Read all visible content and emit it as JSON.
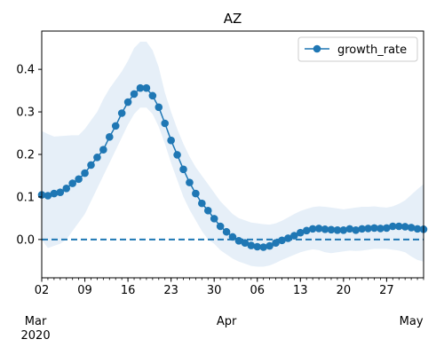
{
  "chart_data": {
    "type": "line",
    "title": "AZ",
    "xlabel": "",
    "ylabel": "",
    "x_start": "2020-03-02",
    "ylim": [
      -0.09,
      0.49
    ],
    "yticks": [
      0.0,
      0.1,
      0.2,
      0.3,
      0.4
    ],
    "ytick_labels": [
      "0.0",
      "0.1",
      "0.2",
      "0.3",
      "0.4"
    ],
    "xticks_minor": [
      {
        "date": "2020-03-02",
        "label": "02"
      },
      {
        "date": "2020-03-09",
        "label": "09"
      },
      {
        "date": "2020-03-16",
        "label": "16"
      },
      {
        "date": "2020-03-23",
        "label": "23"
      },
      {
        "date": "2020-03-30",
        "label": "30"
      },
      {
        "date": "2020-04-06",
        "label": "06"
      },
      {
        "date": "2020-04-13",
        "label": "13"
      },
      {
        "date": "2020-04-20",
        "label": "20"
      },
      {
        "date": "2020-04-27",
        "label": "27"
      }
    ],
    "xticks_major": [
      {
        "date": "2020-03-01",
        "label": "Mar",
        "sublabel": "2020"
      },
      {
        "date": "2020-04-01",
        "label": "Apr",
        "sublabel": ""
      },
      {
        "date": "2020-05-01",
        "label": "May",
        "sublabel": ""
      }
    ],
    "xlim": [
      "2020-03-02",
      "2020-05-03"
    ],
    "reference_line": {
      "y": 0.0,
      "style": "dashed",
      "color": "#1f77b4"
    },
    "legend": {
      "position": "top-right",
      "entries": [
        "growth_rate"
      ]
    },
    "colors": {
      "series": "#1f77b4",
      "band": "#dce8f5"
    },
    "series": [
      {
        "name": "growth_rate",
        "dates": [
          "2020-03-02",
          "2020-03-03",
          "2020-03-04",
          "2020-03-05",
          "2020-03-06",
          "2020-03-07",
          "2020-03-08",
          "2020-03-09",
          "2020-03-10",
          "2020-03-11",
          "2020-03-12",
          "2020-03-13",
          "2020-03-14",
          "2020-03-15",
          "2020-03-16",
          "2020-03-17",
          "2020-03-18",
          "2020-03-19",
          "2020-03-20",
          "2020-03-21",
          "2020-03-22",
          "2020-03-23",
          "2020-03-24",
          "2020-03-25",
          "2020-03-26",
          "2020-03-27",
          "2020-03-28",
          "2020-03-29",
          "2020-03-30",
          "2020-03-31",
          "2020-04-01",
          "2020-04-02",
          "2020-04-03",
          "2020-04-04",
          "2020-04-05",
          "2020-04-06",
          "2020-04-07",
          "2020-04-08",
          "2020-04-09",
          "2020-04-10",
          "2020-04-11",
          "2020-04-12",
          "2020-04-13",
          "2020-04-14",
          "2020-04-15",
          "2020-04-16",
          "2020-04-17",
          "2020-04-18",
          "2020-04-19",
          "2020-04-20",
          "2020-04-21",
          "2020-04-22",
          "2020-04-23",
          "2020-04-24",
          "2020-04-25",
          "2020-04-26",
          "2020-04-27",
          "2020-04-28",
          "2020-04-29",
          "2020-04-30",
          "2020-05-01",
          "2020-05-02",
          "2020-05-03"
        ],
        "values": [
          0.105,
          0.103,
          0.108,
          0.111,
          0.12,
          0.132,
          0.142,
          0.156,
          0.175,
          0.193,
          0.211,
          0.241,
          0.267,
          0.297,
          0.323,
          0.342,
          0.356,
          0.356,
          0.338,
          0.311,
          0.273,
          0.233,
          0.199,
          0.165,
          0.134,
          0.108,
          0.085,
          0.068,
          0.049,
          0.031,
          0.018,
          0.006,
          -0.003,
          -0.008,
          -0.014,
          -0.017,
          -0.018,
          -0.015,
          -0.008,
          -0.002,
          0.003,
          0.009,
          0.016,
          0.021,
          0.025,
          0.026,
          0.024,
          0.023,
          0.022,
          0.022,
          0.025,
          0.022,
          0.025,
          0.026,
          0.027,
          0.026,
          0.027,
          0.031,
          0.031,
          0.03,
          0.028,
          0.025,
          0.024
        ],
        "lower": [
          0.0,
          -0.02,
          -0.015,
          -0.01,
          0.0,
          0.02,
          0.04,
          0.06,
          0.09,
          0.12,
          0.15,
          0.18,
          0.21,
          0.24,
          0.27,
          0.295,
          0.31,
          0.31,
          0.295,
          0.265,
          0.225,
          0.18,
          0.14,
          0.1,
          0.07,
          0.045,
          0.02,
          0.0,
          -0.01,
          -0.025,
          -0.035,
          -0.045,
          -0.052,
          -0.057,
          -0.062,
          -0.064,
          -0.064,
          -0.061,
          -0.055,
          -0.048,
          -0.042,
          -0.036,
          -0.03,
          -0.026,
          -0.023,
          -0.025,
          -0.03,
          -0.032,
          -0.03,
          -0.028,
          -0.026,
          -0.027,
          -0.026,
          -0.024,
          -0.022,
          -0.022,
          -0.022,
          -0.024,
          -0.026,
          -0.03,
          -0.04,
          -0.048,
          -0.052
        ],
        "upper": [
          0.255,
          0.248,
          0.242,
          0.243,
          0.244,
          0.245,
          0.245,
          0.26,
          0.28,
          0.3,
          0.33,
          0.355,
          0.375,
          0.395,
          0.42,
          0.45,
          0.465,
          0.465,
          0.445,
          0.405,
          0.345,
          0.3,
          0.26,
          0.225,
          0.195,
          0.17,
          0.15,
          0.13,
          0.11,
          0.09,
          0.075,
          0.06,
          0.05,
          0.045,
          0.04,
          0.038,
          0.036,
          0.035,
          0.038,
          0.044,
          0.052,
          0.06,
          0.067,
          0.072,
          0.076,
          0.078,
          0.077,
          0.075,
          0.073,
          0.071,
          0.073,
          0.075,
          0.077,
          0.077,
          0.078,
          0.076,
          0.075,
          0.078,
          0.084,
          0.092,
          0.105,
          0.118,
          0.13
        ]
      }
    ]
  }
}
